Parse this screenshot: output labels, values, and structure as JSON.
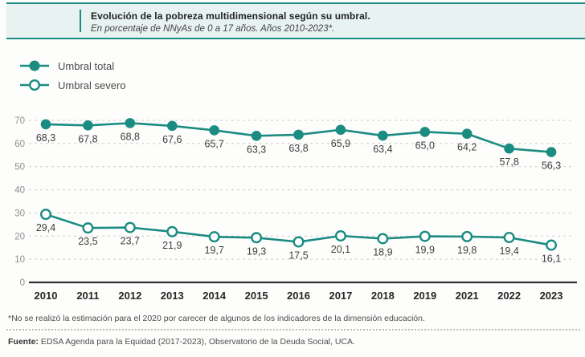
{
  "header": {
    "title": "Evolución de la pobreza multidimensional según su umbral.",
    "subtitle": "En porcentaje de NNyAs de 0 a 17 años. Años 2010-2023*."
  },
  "legend": {
    "items": [
      {
        "label": "Umbral total",
        "marker": "filled-circle"
      },
      {
        "label": "Umbral severo",
        "marker": "open-circle"
      }
    ]
  },
  "colors": {
    "accent": "#1b8c81",
    "header_bg": "#e7f2f1",
    "grid": "#cbcbcb",
    "axis": "#333333",
    "data_label": "#3d3d3d",
    "ytick_label": "#8f8f8f",
    "xtick_label": "#272727"
  },
  "chart_data": {
    "type": "line",
    "title": "Evolución de la pobreza multidimensional según su umbral.",
    "subtitle": "En porcentaje de NNyAs de 0 a 17 años. Años 2010-2023*.",
    "categories": [
      "2010",
      "2011",
      "2012",
      "2013",
      "2014",
      "2015",
      "2016",
      "2017",
      "2018",
      "2019",
      "2021",
      "2022",
      "2023"
    ],
    "series": [
      {
        "name": "Umbral total",
        "marker": "filled",
        "values": [
          68.3,
          67.8,
          68.8,
          67.6,
          65.7,
          63.3,
          63.8,
          65.9,
          63.4,
          65.0,
          64.2,
          57.8,
          56.3
        ]
      },
      {
        "name": "Umbral severo",
        "marker": "open",
        "values": [
          29.4,
          23.5,
          23.7,
          21.9,
          19.7,
          19.3,
          17.5,
          20.1,
          18.9,
          19.9,
          19.8,
          19.4,
          16.1
        ]
      }
    ],
    "ylim": [
      0,
      70
    ],
    "yticks": [
      0,
      10,
      20,
      30,
      40,
      50,
      60,
      70
    ],
    "grid": true,
    "grid_style": "dashed",
    "legend_position": "top-left",
    "decimal_separator": ",",
    "xlabel": "",
    "ylabel": ""
  },
  "footnote": "*No se realizó la estimación para el 2020 por carecer de algunos de los indicadores de la dimensión educación.",
  "source": {
    "label": "Fuente:",
    "text": " EDSA Agenda para la Equidad (2017-2023), Observatorio de la Deuda Social, UCA."
  }
}
